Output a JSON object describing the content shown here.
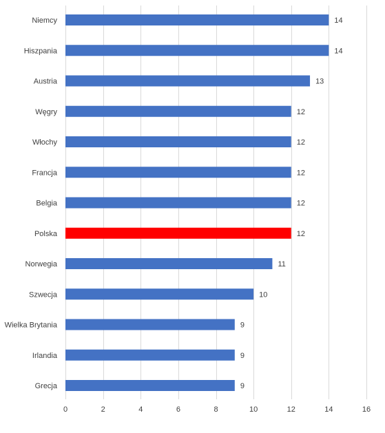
{
  "chart_data": {
    "type": "bar",
    "orientation": "horizontal",
    "categories": [
      "Niemcy",
      "Hiszpania",
      "Austria",
      "Węgry",
      "Włochy",
      "Francja",
      "Belgia",
      "Polska",
      "Norwegia",
      "Szwecja",
      "Wielka Brytania",
      "Irlandia",
      "Grecja"
    ],
    "values": [
      14,
      14,
      13,
      12,
      12,
      12,
      12,
      12,
      11,
      10,
      9,
      9,
      9
    ],
    "xlim": [
      0,
      16
    ],
    "xticks": [
      0,
      2,
      4,
      6,
      8,
      10,
      12,
      14,
      16
    ],
    "grid": true,
    "data_labels": true,
    "bar_color": "#4472C4",
    "highlight": {
      "category": "Polska",
      "color": "#FF0000"
    },
    "title": "",
    "xlabel": "",
    "ylabel": ""
  }
}
